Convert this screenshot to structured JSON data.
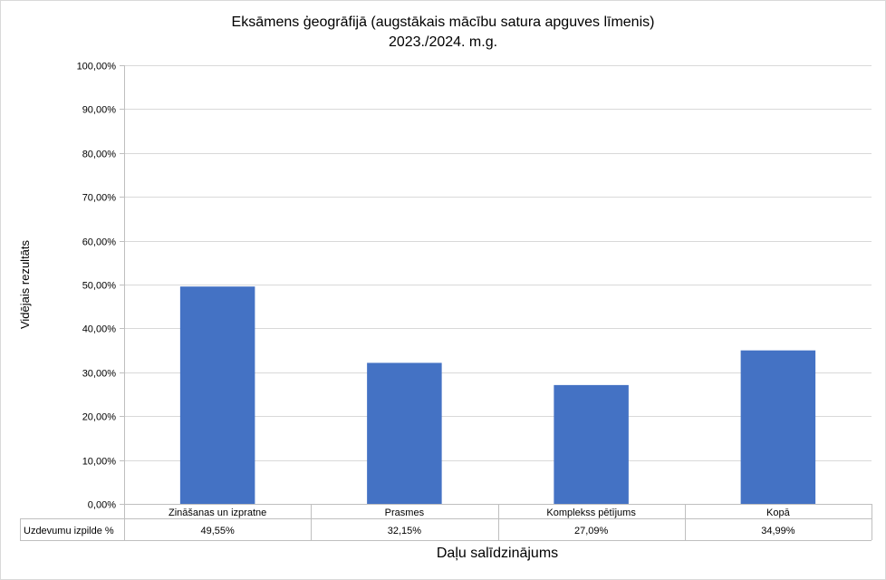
{
  "chart_data": {
    "type": "bar",
    "title": "Eksāmens ģeogrāfijā (augstākais mācību satura apguves līmenis)",
    "subtitle": "2023./2024. m.g.",
    "xlabel": "Daļu salīdzinājums",
    "ylabel": "Vidējais rezultāts",
    "categories": [
      "Zināšanas un izpratne",
      "Prasmes",
      "Komplekss pētījums",
      "Kopā"
    ],
    "series": [
      {
        "name": "Uzdevumu izpilde %",
        "values": [
          49.55,
          32.15,
          27.09,
          34.99
        ],
        "labels": [
          "49,55%",
          "32,15%",
          "27,09%",
          "34,99%"
        ]
      }
    ],
    "ylim": [
      0,
      100
    ],
    "yticks": [
      0,
      10,
      20,
      30,
      40,
      50,
      60,
      70,
      80,
      90,
      100
    ],
    "ytick_labels": [
      "0,00%",
      "10,00%",
      "20,00%",
      "30,00%",
      "40,00%",
      "50,00%",
      "60,00%",
      "70,00%",
      "80,00%",
      "90,00%",
      "100,00%"
    ],
    "grid": true,
    "legend": "data-table-below",
    "bar_color": "#4472c4"
  }
}
